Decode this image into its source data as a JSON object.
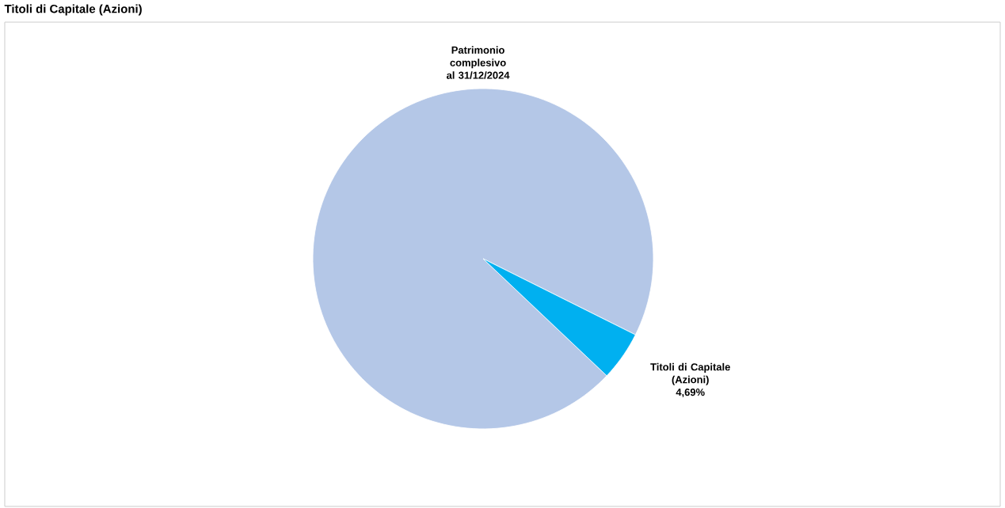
{
  "chart_data": {
    "type": "pie",
    "title": "Titoli di Capitale (Azioni)",
    "categories": [
      "Patrimonio complesivo al 31/12/2024",
      "Titoli di Capitale (Azioni)"
    ],
    "values": [
      95.31,
      4.69
    ],
    "colors": [
      "#b4c7e7",
      "#00b0f0"
    ],
    "value_labels": [
      null,
      "4,69%"
    ]
  }
}
